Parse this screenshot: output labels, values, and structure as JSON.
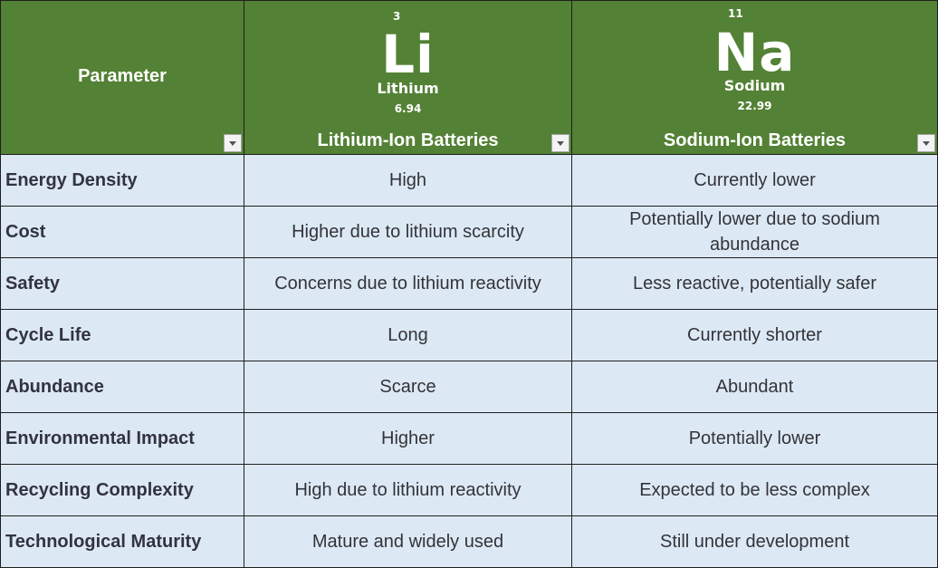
{
  "header": {
    "parameter": "Parameter",
    "col_lithium": "Lithium-Ion Batteries",
    "col_sodium": "Sodium-Ion Batteries",
    "lithium_tile": {
      "atomic_number": "3",
      "symbol": "Li",
      "name": "Lithium",
      "atomic_mass": "6.94"
    },
    "sodium_tile": {
      "atomic_number": "11",
      "symbol": "Na",
      "name": "Sodium",
      "atomic_mass": "22.99"
    }
  },
  "rows": [
    {
      "parameter": "Energy Density",
      "lithium": "High",
      "sodium": "Currently lower"
    },
    {
      "parameter": "Cost",
      "lithium": "Higher due to lithium scarcity",
      "sodium": "Potentially lower due to sodium abundance"
    },
    {
      "parameter": "Safety",
      "lithium": "Concerns due to lithium reactivity",
      "sodium": "Less reactive, potentially safer"
    },
    {
      "parameter": "Cycle Life",
      "lithium": "Long",
      "sodium": "Currently shorter"
    },
    {
      "parameter": "Abundance",
      "lithium": "Scarce",
      "sodium": "Abundant"
    },
    {
      "parameter": "Environmental Impact",
      "lithium": "Higher",
      "sodium": "Potentially lower"
    },
    {
      "parameter": "Recycling Complexity",
      "lithium": "High due to lithium reactivity",
      "sodium": "Expected to be less complex"
    },
    {
      "parameter": "Technological Maturity",
      "lithium": "Mature and widely used",
      "sodium": "Still under development"
    }
  ],
  "colors": {
    "header_bg": "#538135",
    "cell_bg": "#dce9f5",
    "border": "#1f1f1f"
  },
  "icons": {
    "filter": "dropdown-filter-icon"
  }
}
